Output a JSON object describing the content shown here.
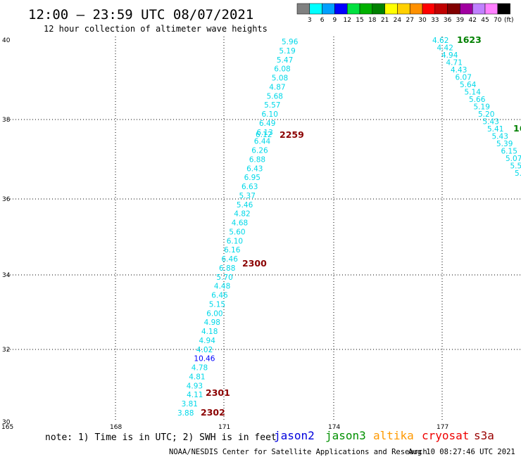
{
  "header": {
    "title": "12:00 – 23:59 UTC 08/07/2021",
    "subtitle": "12 hour collection of altimeter wave heights"
  },
  "legend": {
    "colors": [
      "#808080",
      "#00ffff",
      "#00a0ff",
      "#0000ff",
      "#00e040",
      "#00b000",
      "#008000",
      "#ffff00",
      "#ffd000",
      "#ff9000",
      "#ff0000",
      "#c00000",
      "#800000",
      "#a000a0",
      "#c080ff",
      "#ff80ff",
      "#000000"
    ],
    "labels": [
      "3",
      "6",
      "9",
      "12",
      "15",
      "18",
      "21",
      "24",
      "27",
      "30",
      "33",
      "36",
      "39",
      "42",
      "45",
      "70"
    ],
    "unit": "(ft)"
  },
  "axes": {
    "x_ticks": [
      "165",
      "168",
      "171",
      "174",
      "177"
    ],
    "y_ticks": [
      "40",
      "38",
      "36",
      "34",
      "32",
      "30"
    ]
  },
  "tracks": [
    {
      "values": [
        "5.96",
        "5.19",
        "5.47",
        "6.08",
        "5.08",
        "4.87",
        "5.68",
        "5.57",
        "6.10",
        "6.49",
        "6.13",
        "6.44",
        "6.26",
        "6.88",
        "6.43",
        "6.95",
        "6.63",
        "5.37",
        "5.46",
        "4.82",
        "4.68",
        "5.60",
        "6.10",
        "6.16",
        "6.46",
        "6.88",
        "5.70",
        "4.48",
        "6.46",
        "5.15",
        "6.00",
        "4.98",
        "4.18",
        "4.94",
        "4.02",
        "10.46",
        "4.78",
        "4.81",
        "4.93",
        "4.11",
        "3.81",
        "3.88"
      ],
      "overlap_value": "6.12",
      "times": [
        "2259",
        "2300",
        "2301",
        "2302"
      ]
    },
    {
      "values": [
        "4.62",
        "4.42",
        "4.94",
        "4.71",
        "4.43",
        "6.07",
        "5.64",
        "5.14",
        "5.66",
        "5.19",
        "5.20",
        "5.43",
        "5.41",
        "5.43",
        "5.39",
        "6.15",
        "5.07",
        "5.5",
        "5."
      ],
      "time": "1623",
      "edge_label": "16"
    }
  ],
  "footer": {
    "note": "note: 1) Time is in UTC; 2) SWH is in feet",
    "sats": [
      "jason2",
      "jason3",
      "altika",
      "cryosat",
      "s3a"
    ],
    "sat_colors": [
      "#0000dd",
      "#009000",
      "#ff9900",
      "#ee0000",
      "#990000"
    ],
    "credit": "NOAA/NESDIS Center for Satellite Applications and Research",
    "timestamp": "Aug 10 08:27:46 UTC 2021"
  }
}
